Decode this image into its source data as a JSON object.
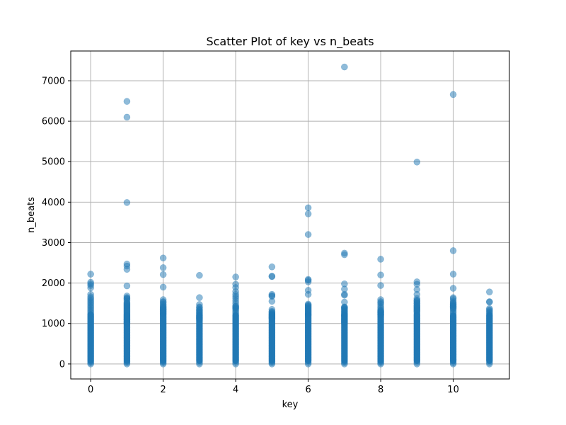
{
  "chart_data": {
    "type": "scatter",
    "title": "Scatter Plot of key vs n_beats",
    "xlabel": "key",
    "ylabel": "n_beats",
    "xlim": [
      -0.55,
      11.55
    ],
    "ylim": [
      -370,
      7735
    ],
    "x_ticks": [
      0,
      2,
      4,
      6,
      8,
      10
    ],
    "y_ticks": [
      0,
      1000,
      2000,
      3000,
      4000,
      5000,
      6000,
      7000
    ],
    "grid": true,
    "point_color": "#1f77b4",
    "point_alpha": 0.5,
    "series": [
      {
        "x": [
          0,
          0,
          0,
          0,
          0,
          0,
          0,
          0,
          0,
          0,
          0,
          0,
          0,
          0,
          0,
          0,
          0,
          0,
          0,
          0,
          0,
          0,
          0,
          0,
          0,
          0,
          0,
          0,
          0,
          0,
          0,
          0,
          0,
          0,
          0,
          0,
          0,
          0,
          0,
          0,
          0,
          0,
          0,
          0,
          0,
          0,
          0,
          0,
          0,
          1,
          1,
          1,
          1,
          1,
          1,
          1,
          1,
          1,
          1,
          1,
          1,
          1,
          1,
          1,
          1,
          1,
          1,
          1,
          1,
          1,
          1,
          1,
          1,
          1,
          1,
          1,
          1,
          1,
          1,
          1,
          1,
          1,
          1,
          1,
          1,
          1,
          1,
          1,
          1,
          1,
          1,
          1,
          1,
          1,
          1,
          1,
          1,
          1,
          1,
          1,
          1,
          1,
          1,
          1,
          1,
          1,
          1,
          1,
          1,
          1,
          1,
          1,
          1,
          1,
          2,
          2,
          2,
          2,
          2,
          2,
          2,
          2,
          2,
          2,
          2,
          2,
          2,
          2,
          2,
          2,
          2,
          2,
          2,
          2,
          2,
          2,
          2,
          2,
          2,
          2,
          2,
          2,
          2,
          2,
          2,
          2,
          2,
          2,
          2,
          2,
          2,
          2,
          2,
          2,
          2,
          2,
          2,
          2,
          2,
          2,
          2,
          2,
          2,
          2,
          2,
          3,
          3,
          3,
          3,
          3,
          3,
          3,
          3,
          3,
          3,
          3,
          3,
          3,
          3,
          3,
          3,
          3,
          3,
          3,
          3,
          3,
          3,
          3,
          3,
          3,
          3,
          3,
          3,
          3,
          3,
          3,
          3,
          3,
          3,
          3,
          3,
          3,
          3,
          3,
          3,
          3,
          3,
          3,
          3,
          3,
          3,
          4,
          4,
          4,
          4,
          4,
          4,
          4,
          4,
          4,
          4,
          4,
          4,
          4,
          4,
          4,
          4,
          4,
          4,
          4,
          4,
          4,
          4,
          4,
          4,
          4,
          4,
          4,
          4,
          4,
          4,
          4,
          4,
          4,
          4,
          4,
          4,
          4,
          4,
          4,
          4,
          4,
          4,
          4,
          4,
          4,
          4,
          4,
          4,
          5,
          5,
          5,
          5,
          5,
          5,
          5,
          5,
          5,
          5,
          5,
          5,
          5,
          5,
          5,
          5,
          5,
          5,
          5,
          5,
          5,
          5,
          5,
          5,
          5,
          5,
          5,
          5,
          5,
          5,
          5,
          5,
          5,
          5,
          5,
          5,
          5,
          5,
          5,
          5,
          5,
          5,
          5,
          5,
          5,
          5,
          5,
          6,
          6,
          6,
          6,
          6,
          6,
          6,
          6,
          6,
          6,
          6,
          6,
          6,
          6,
          6,
          6,
          6,
          6,
          6,
          6,
          6,
          6,
          6,
          6,
          6,
          6,
          6,
          6,
          6,
          6,
          6,
          6,
          6,
          6,
          6,
          6,
          6,
          6,
          6,
          6,
          6,
          6,
          6,
          6,
          6,
          6,
          6,
          6,
          6,
          6,
          6,
          6,
          6,
          7,
          7,
          7,
          7,
          7,
          7,
          7,
          7,
          7,
          7,
          7,
          7,
          7,
          7,
          7,
          7,
          7,
          7,
          7,
          7,
          7,
          7,
          7,
          7,
          7,
          7,
          7,
          7,
          7,
          7,
          7,
          7,
          7,
          7,
          7,
          7,
          7,
          7,
          7,
          7,
          7,
          7,
          7,
          7,
          7,
          7,
          7,
          7,
          7,
          7,
          7,
          7,
          7,
          7,
          7,
          7,
          7,
          7,
          8,
          8,
          8,
          8,
          8,
          8,
          8,
          8,
          8,
          8,
          8,
          8,
          8,
          8,
          8,
          8,
          8,
          8,
          8,
          8,
          8,
          8,
          8,
          8,
          8,
          8,
          8,
          8,
          8,
          8,
          8,
          8,
          8,
          8,
          8,
          8,
          8,
          8,
          8,
          8,
          8,
          8,
          8,
          8,
          8,
          8,
          8,
          8,
          8,
          9,
          9,
          9,
          9,
          9,
          9,
          9,
          9,
          9,
          9,
          9,
          9,
          9,
          9,
          9,
          9,
          9,
          9,
          9,
          9,
          9,
          9,
          9,
          9,
          9,
          9,
          9,
          9,
          9,
          9,
          9,
          9,
          9,
          9,
          9,
          9,
          9,
          9,
          9,
          9,
          9,
          9,
          9,
          9,
          9,
          9,
          9,
          9,
          9,
          9,
          9,
          9,
          9,
          10,
          10,
          10,
          10,
          10,
          10,
          10,
          10,
          10,
          10,
          10,
          10,
          10,
          10,
          10,
          10,
          10,
          10,
          10,
          10,
          10,
          10,
          10,
          10,
          10,
          10,
          10,
          10,
          10,
          10,
          10,
          10,
          10,
          10,
          10,
          10,
          10,
          10,
          10,
          10,
          10,
          10,
          10,
          10,
          10,
          10,
          10,
          10,
          10,
          10,
          11,
          11,
          11,
          11,
          11,
          11,
          11,
          11,
          11,
          11,
          11,
          11,
          11,
          11,
          11,
          11,
          11,
          11,
          11,
          11,
          11,
          11,
          11,
          11,
          11,
          11,
          11,
          11,
          11,
          11,
          11,
          11,
          11,
          11,
          11,
          11,
          11,
          11,
          11,
          11,
          11,
          11,
          11,
          11,
          11,
          11,
          11,
          11,
          11
        ],
        "y": [
          2220,
          2020,
          1980,
          1940,
          1880,
          1720,
          1660,
          1620,
          1580,
          1540,
          1500,
          1460,
          1420,
          1380,
          1340,
          1300,
          1260,
          1220,
          1180,
          1140,
          1100,
          1060,
          1020,
          980,
          940,
          900,
          860,
          820,
          780,
          740,
          700,
          660,
          620,
          580,
          540,
          500,
          460,
          420,
          380,
          340,
          300,
          260,
          220,
          180,
          140,
          100,
          60,
          30,
          0,
          6490,
          6100,
          3990,
          2470,
          2420,
          2340,
          1930,
          1680,
          1620,
          1560,
          1500,
          1460,
          1420,
          1380,
          1340,
          1300,
          1260,
          1220,
          1180,
          1140,
          1100,
          1060,
          1020,
          980,
          940,
          900,
          860,
          820,
          780,
          740,
          700,
          660,
          620,
          580,
          540,
          500,
          460,
          420,
          380,
          340,
          300,
          260,
          220,
          180,
          140,
          100,
          60,
          30,
          0,
          1010,
          1040,
          1090,
          1120,
          1160,
          1200,
          1240,
          1280,
          1320,
          1360,
          1400,
          1440,
          1480,
          1520,
          1600,
          1640,
          2620,
          2380,
          2210,
          1900,
          1590,
          1540,
          1480,
          1420,
          1380,
          1340,
          1300,
          1260,
          1220,
          1180,
          1140,
          1100,
          1060,
          1020,
          980,
          940,
          900,
          860,
          820,
          780,
          740,
          700,
          660,
          620,
          580,
          540,
          500,
          460,
          420,
          380,
          340,
          300,
          260,
          220,
          180,
          140,
          100,
          60,
          30,
          0,
          1520,
          1450,
          1400,
          1360,
          1330,
          1290,
          1250,
          2190,
          1640,
          1470,
          1410,
          1350,
          1310,
          1280,
          1240,
          1200,
          1160,
          1120,
          1080,
          1040,
          1000,
          960,
          920,
          880,
          840,
          800,
          760,
          720,
          680,
          640,
          600,
          560,
          520,
          480,
          440,
          400,
          360,
          320,
          280,
          240,
          200,
          160,
          120,
          80,
          40,
          0,
          1390,
          1330,
          1260,
          1210,
          1170,
          1140,
          1110,
          2150,
          1970,
          1890,
          1790,
          1720,
          1670,
          1620,
          1560,
          1500,
          1440,
          1400,
          1360,
          1320,
          1280,
          1240,
          1200,
          1160,
          1120,
          1080,
          1040,
          1000,
          960,
          920,
          880,
          840,
          800,
          760,
          720,
          680,
          640,
          600,
          560,
          520,
          480,
          440,
          400,
          360,
          320,
          280,
          240,
          200,
          160,
          120,
          80,
          40,
          0,
          1420,
          1380,
          2400,
          2170,
          2160,
          1720,
          1690,
          1670,
          1550,
          1350,
          1300,
          1260,
          1220,
          1180,
          1140,
          1100,
          1060,
          1020,
          980,
          940,
          900,
          860,
          820,
          780,
          740,
          700,
          660,
          620,
          580,
          540,
          500,
          460,
          420,
          380,
          340,
          300,
          260,
          220,
          180,
          140,
          100,
          60,
          30,
          0,
          1280,
          1240,
          1200,
          1160,
          1130,
          3860,
          3710,
          3200,
          2090,
          2070,
          2030,
          1820,
          1720,
          1480,
          1440,
          1400,
          1360,
          1320,
          1280,
          1240,
          1200,
          1160,
          1120,
          1080,
          1040,
          1000,
          960,
          920,
          880,
          840,
          800,
          760,
          720,
          680,
          640,
          600,
          560,
          520,
          480,
          440,
          400,
          360,
          320,
          280,
          240,
          200,
          160,
          120,
          80,
          40,
          0,
          1460,
          1420,
          1380,
          1340,
          1300,
          1260,
          1220,
          7340,
          2740,
          2700,
          1980,
          1850,
          1720,
          1700,
          1530,
          1400,
          1350,
          1300,
          1260,
          1220,
          1180,
          1140,
          1100,
          1060,
          1020,
          980,
          940,
          900,
          860,
          820,
          780,
          740,
          700,
          660,
          620,
          580,
          540,
          500,
          460,
          420,
          380,
          340,
          300,
          260,
          220,
          180,
          140,
          100,
          60,
          30,
          0,
          1210,
          1170,
          1130,
          1100,
          1070,
          1040,
          1010,
          1200,
          1250,
          1290,
          1330,
          1370,
          1390,
          1410,
          2590,
          2200,
          1940,
          1590,
          1540,
          1510,
          1470,
          1420,
          1380,
          1340,
          1300,
          1260,
          1220,
          1180,
          1140,
          1100,
          1060,
          1020,
          980,
          940,
          900,
          860,
          820,
          780,
          740,
          700,
          660,
          620,
          580,
          540,
          500,
          460,
          420,
          380,
          340,
          300,
          260,
          220,
          180,
          140,
          100,
          60,
          30,
          0,
          1320,
          1290,
          1270,
          1240,
          1210,
          4990,
          2030,
          1970,
          1840,
          1720,
          1620,
          1560,
          1500,
          1440,
          1400,
          1360,
          1320,
          1280,
          1240,
          1200,
          1160,
          1120,
          1080,
          1040,
          1000,
          960,
          920,
          880,
          840,
          800,
          760,
          720,
          680,
          640,
          600,
          560,
          520,
          480,
          440,
          400,
          360,
          320,
          280,
          240,
          200,
          160,
          120,
          80,
          40,
          0,
          1580,
          1540,
          1500,
          1460,
          1420,
          1380,
          1340,
          1300,
          6660,
          2800,
          2220,
          1870,
          1640,
          1610,
          1560,
          1520,
          1470,
          1430,
          1390,
          1350,
          1310,
          1270,
          1230,
          1190,
          1150,
          1110,
          1070,
          1030,
          990,
          950,
          910,
          870,
          830,
          790,
          750,
          710,
          670,
          630,
          590,
          550,
          510,
          470,
          430,
          390,
          350,
          310,
          270,
          230,
          190,
          150,
          110,
          70,
          30,
          0,
          1500,
          1460,
          1420,
          1380,
          1780,
          1540,
          1530,
          1370,
          1340,
          1310,
          1280,
          1250,
          1220,
          1190,
          1160,
          1130,
          1100,
          1070,
          1040,
          1010,
          980,
          950,
          920,
          890,
          860,
          830,
          800,
          770,
          740,
          710,
          680,
          650,
          620,
          590,
          560,
          530,
          500,
          470,
          440,
          410,
          380,
          350,
          320,
          290,
          260,
          230,
          200,
          170,
          140,
          110,
          80,
          40,
          0
        ]
      }
    ]
  }
}
